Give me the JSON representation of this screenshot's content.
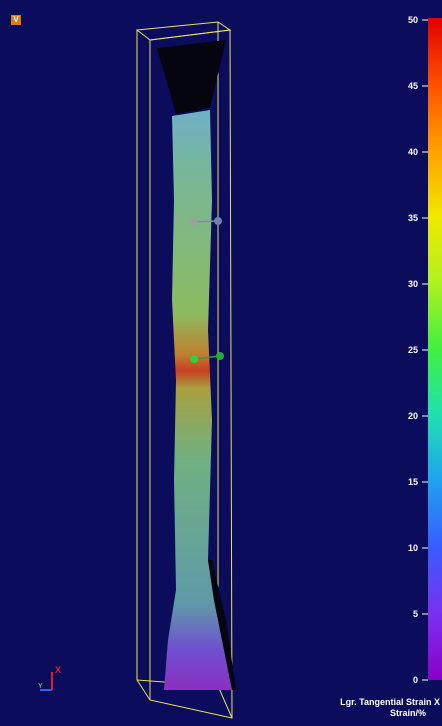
{
  "badge": "V",
  "colorbar": {
    "ticks": [
      0,
      5,
      10,
      15,
      20,
      25,
      30,
      35,
      40,
      45,
      50
    ],
    "label": "Lgr. Tangential Strain X",
    "unit": "Strain/%"
  },
  "triad": {
    "x": "X",
    "y": "Y"
  }
}
